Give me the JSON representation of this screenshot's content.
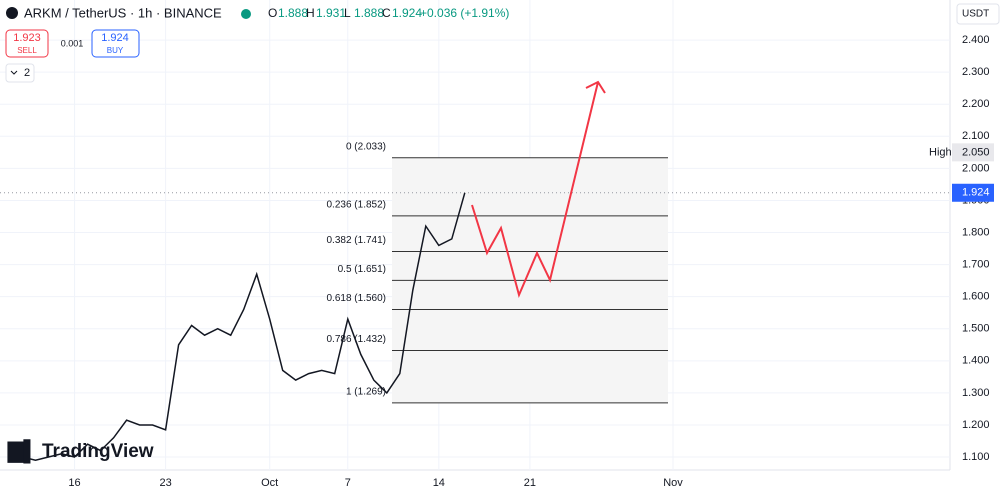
{
  "header": {
    "symbol": "ARKM / TetherUS · 1h · BINANCE",
    "ohlc": [
      {
        "key": "O",
        "value": "1.888"
      },
      {
        "key": "H",
        "value": "1.931"
      },
      {
        "key": "L",
        "value": "1.888"
      },
      {
        "key": "C",
        "value": "1.924"
      }
    ],
    "change": "+0.036 (+1.91%)",
    "sell": {
      "price": "1.923",
      "label": "SELL"
    },
    "spread": "0.001",
    "buy": {
      "price": "1.924",
      "label": "BUY"
    },
    "indicators": "2",
    "currency": "USDT",
    "brand": "TradingView"
  },
  "chart_data": {
    "type": "line",
    "color": "#131722",
    "categories": [
      null,
      null,
      null,
      null,
      null,
      "16",
      null,
      null,
      null,
      null,
      null,
      null,
      "23",
      null,
      null,
      null,
      null,
      null,
      null,
      null,
      "Oct",
      null,
      null,
      null,
      null,
      null,
      "7",
      null,
      null,
      null,
      null,
      null,
      null,
      "14",
      null,
      null,
      null,
      null,
      null,
      null,
      "21",
      null,
      null,
      null,
      null,
      null,
      null,
      null,
      null,
      null,
      null,
      "Nov"
    ],
    "values": [
      1.09,
      1.1,
      1.09,
      1.1,
      1.11,
      1.1,
      1.14,
      1.12,
      1.16,
      1.215,
      1.2,
      1.2,
      1.185,
      1.45,
      1.51,
      1.48,
      1.5,
      1.48,
      1.56,
      1.67,
      1.53,
      1.37,
      1.34,
      1.36,
      1.37,
      1.36,
      1.53,
      1.42,
      1.34,
      1.3,
      1.36,
      1.62,
      1.82,
      1.76,
      1.78,
      1.924,
      null,
      null,
      null,
      null,
      null,
      null,
      null,
      null,
      null,
      null,
      null,
      null,
      null,
      null,
      null,
      null
    ],
    "ylim": [
      1.044,
      2.525
    ],
    "yticks": [
      {
        "value": 1.1,
        "label": "1.100"
      },
      {
        "value": 1.2,
        "label": "1.200"
      },
      {
        "value": 1.3,
        "label": "1.300"
      },
      {
        "value": 1.4,
        "label": "1.400"
      },
      {
        "value": 1.5,
        "label": "1.500"
      },
      {
        "value": 1.6,
        "label": "1.600"
      },
      {
        "value": 1.7,
        "label": "1.700"
      },
      {
        "value": 1.8,
        "label": "1.800"
      },
      {
        "value": 1.9,
        "label": "1.900"
      },
      {
        "value": 2.0,
        "label": "2.000"
      },
      {
        "value": 2.1,
        "label": "2.100"
      },
      {
        "value": 2.2,
        "label": "2.200"
      },
      {
        "value": 2.3,
        "label": "2.300"
      },
      {
        "value": 2.4,
        "label": "2.400"
      }
    ],
    "grid": true,
    "high": {
      "name": "High",
      "value": 2.05,
      "label": "2.050"
    },
    "last": {
      "value": 1.924,
      "label": "1.924"
    },
    "fib_levels": [
      {
        "value": 2.033,
        "label": "0 (2.033)"
      },
      {
        "value": 1.852,
        "label": "0.236 (1.852)"
      },
      {
        "value": 1.741,
        "label": "0.382 (1.741)"
      },
      {
        "value": 1.651,
        "label": "0.5 (1.651)"
      },
      {
        "value": 1.56,
        "label": "0.618 (1.560)"
      },
      {
        "value": 1.432,
        "label": "0.786 (1.432)"
      },
      {
        "value": 1.269,
        "label": "1 (1.269)"
      }
    ]
  }
}
